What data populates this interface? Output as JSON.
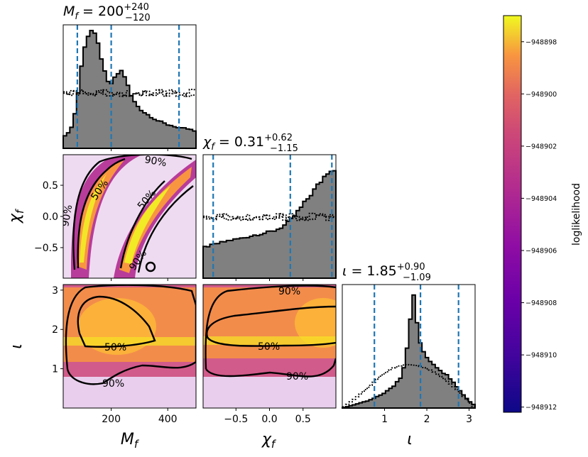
{
  "chart_data": {
    "type": "corner",
    "parameters": [
      {
        "id": "Mf",
        "label": "M_f",
        "label_sub": "f",
        "label_main": "M",
        "range": [
          30,
          500
        ],
        "ticks": [
          200,
          400
        ],
        "tick_labels": [
          "200",
          "400"
        ],
        "title_main": "M",
        "title_sub": "f",
        "title_value": " = 200",
        "title_upper": "+240",
        "title_lower": "−120",
        "quantiles": [
          80,
          200,
          440
        ]
      },
      {
        "id": "chif",
        "label": "χ_f",
        "label_main": "χ",
        "label_sub": "f",
        "range": [
          -0.99,
          0.99
        ],
        "ticks": [
          -0.5,
          0.0,
          0.5
        ],
        "tick_labels": [
          "−0.5",
          "0.0",
          "0.5"
        ],
        "title_main": "χ",
        "title_sub": "f",
        "title_value": " = 0.31",
        "title_upper": "+0.62",
        "title_lower": "−1.15",
        "quantiles": [
          -0.84,
          0.31,
          0.93
        ]
      },
      {
        "id": "iota",
        "label": "ι",
        "label_main": "ι",
        "label_sub": "",
        "range": [
          0,
          3.1416
        ],
        "ticks": [
          1,
          2,
          3
        ],
        "tick_labels": [
          "1",
          "2",
          "3"
        ],
        "title_main": "ι",
        "title_sub": "",
        "title_value": " = 1.85",
        "title_upper": "+0.90",
        "title_lower": "−1.09",
        "quantiles": [
          0.76,
          1.85,
          2.75
        ]
      }
    ],
    "marginals": {
      "Mf": {
        "posterior_curve": [
          [
            30,
            0.08
          ],
          [
            40,
            0.12
          ],
          [
            50,
            0.14
          ],
          [
            60,
            0.18
          ],
          [
            70,
            0.28
          ],
          [
            80,
            0.42
          ],
          [
            90,
            0.6
          ],
          [
            100,
            0.8
          ],
          [
            110,
            0.92
          ],
          [
            120,
            0.97
          ],
          [
            130,
            1.0
          ],
          [
            140,
            0.96
          ],
          [
            150,
            0.9
          ],
          [
            160,
            0.83
          ],
          [
            170,
            0.72
          ],
          [
            180,
            0.6
          ],
          [
            190,
            0.55
          ],
          [
            200,
            0.55
          ],
          [
            210,
            0.58
          ],
          [
            220,
            0.62
          ],
          [
            230,
            0.66
          ],
          [
            240,
            0.65
          ],
          [
            250,
            0.6
          ],
          [
            260,
            0.52
          ],
          [
            270,
            0.45
          ],
          [
            280,
            0.4
          ],
          [
            290,
            0.37
          ],
          [
            300,
            0.34
          ],
          [
            320,
            0.3
          ],
          [
            340,
            0.27
          ],
          [
            360,
            0.24
          ],
          [
            380,
            0.22
          ],
          [
            400,
            0.2
          ],
          [
            420,
            0.19
          ],
          [
            440,
            0.17
          ],
          [
            460,
            0.17
          ],
          [
            480,
            0.16
          ],
          [
            500,
            0.14
          ]
        ],
        "prior_level": 0.47
      },
      "chif": {
        "posterior_curve": [
          [
            -0.99,
            0.26
          ],
          [
            -0.8,
            0.29
          ],
          [
            -0.6,
            0.32
          ],
          [
            -0.4,
            0.34
          ],
          [
            -0.2,
            0.37
          ],
          [
            0.0,
            0.39
          ],
          [
            0.1,
            0.41
          ],
          [
            0.2,
            0.44
          ],
          [
            0.3,
            0.48
          ],
          [
            0.4,
            0.55
          ],
          [
            0.5,
            0.62
          ],
          [
            0.6,
            0.7
          ],
          [
            0.7,
            0.77
          ],
          [
            0.8,
            0.85
          ],
          [
            0.9,
            0.93
          ],
          [
            0.99,
            0.92
          ]
        ],
        "prior_level": 0.52
      },
      "iota": {
        "posterior_curve": [
          [
            0,
            0.0
          ],
          [
            0.2,
            0.02
          ],
          [
            0.4,
            0.04
          ],
          [
            0.6,
            0.06
          ],
          [
            0.8,
            0.09
          ],
          [
            1.0,
            0.13
          ],
          [
            1.2,
            0.18
          ],
          [
            1.4,
            0.27
          ],
          [
            1.5,
            0.42
          ],
          [
            1.6,
            0.72
          ],
          [
            1.65,
            0.98
          ],
          [
            1.7,
            0.93
          ],
          [
            1.8,
            0.62
          ],
          [
            1.9,
            0.48
          ],
          [
            2.0,
            0.43
          ],
          [
            2.2,
            0.36
          ],
          [
            2.4,
            0.3
          ],
          [
            2.6,
            0.24
          ],
          [
            2.8,
            0.14
          ],
          [
            3.0,
            0.06
          ],
          [
            3.1416,
            0.02
          ]
        ],
        "prior_curve": [
          [
            0,
            0.0
          ],
          [
            0.3,
            0.08
          ],
          [
            0.6,
            0.17
          ],
          [
            0.9,
            0.27
          ],
          [
            1.2,
            0.34
          ],
          [
            1.5,
            0.37
          ],
          [
            1.8,
            0.36
          ],
          [
            2.1,
            0.32
          ],
          [
            2.4,
            0.25
          ],
          [
            2.7,
            0.16
          ],
          [
            3.0,
            0.05
          ],
          [
            3.1416,
            0.0
          ]
        ]
      }
    },
    "contour_labels": {
      "chif_vs_Mf": [
        "50%",
        "50%",
        "90%",
        "90%",
        "90%"
      ],
      "iota_vs_Mf": [
        "50%",
        "90%"
      ],
      "iota_vs_chif": [
        "50%",
        "90%",
        "90%"
      ]
    },
    "colorbar": {
      "label": "loglikelihood",
      "colormap": "plasma",
      "range": [
        -948912.2,
        -948897.0
      ],
      "ticks": [
        -948898,
        -948900,
        -948902,
        -948904,
        -948906,
        -948908,
        -948910,
        -948912
      ],
      "tick_labels": [
        "−948898",
        "−948900",
        "−948902",
        "−948904",
        "−948906",
        "−948908",
        "−948910",
        "−948912"
      ]
    },
    "colors": {
      "hist_fill": "#808080",
      "quantile_line": "#1f77b4",
      "contour": "#000000"
    }
  }
}
